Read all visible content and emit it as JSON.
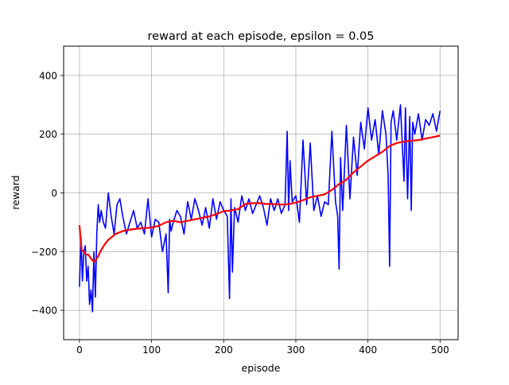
{
  "chart_data": {
    "type": "line",
    "title": "reward at each episode, epsilon = 0.05",
    "xlabel": "episode",
    "ylabel": "reward",
    "xlim": [
      -22,
      525
    ],
    "ylim": [
      -500,
      500
    ],
    "xticks": [
      0,
      100,
      200,
      300,
      400,
      500
    ],
    "yticks": [
      -400,
      -200,
      0,
      200,
      400
    ],
    "xtick_labels": [
      "0",
      "100",
      "200",
      "300",
      "400",
      "500"
    ],
    "ytick_labels": [
      "−400",
      "−200",
      "0",
      "200",
      "400"
    ],
    "grid": true,
    "series": [
      {
        "color": "#0000ff",
        "x": [
          0,
          2,
          4,
          6,
          8,
          10,
          12,
          14,
          16,
          18,
          20,
          22,
          24,
          26,
          28,
          30,
          33,
          36,
          40,
          44,
          48,
          52,
          56,
          60,
          65,
          70,
          75,
          80,
          85,
          90,
          95,
          100,
          105,
          110,
          115,
          120,
          123,
          125,
          127,
          130,
          135,
          140,
          145,
          150,
          155,
          160,
          165,
          170,
          175,
          180,
          185,
          190,
          195,
          200,
          205,
          208,
          210,
          212,
          215,
          220,
          225,
          230,
          235,
          240,
          245,
          250,
          255,
          260,
          265,
          270,
          275,
          280,
          285,
          288,
          290,
          292,
          295,
          300,
          305,
          310,
          315,
          320,
          325,
          330,
          335,
          340,
          345,
          350,
          355,
          358,
          360,
          362,
          365,
          370,
          375,
          380,
          385,
          390,
          395,
          400,
          405,
          410,
          415,
          420,
          425,
          428,
          430,
          432,
          435,
          440,
          445,
          450,
          452,
          455,
          458,
          460,
          462,
          465,
          470,
          475,
          480,
          485,
          490,
          495,
          500
        ],
        "values": [
          -320,
          -150,
          -300,
          -200,
          -180,
          -300,
          -250,
          -380,
          -330,
          -405,
          -200,
          -355,
          -140,
          -40,
          -100,
          -60,
          -100,
          -120,
          0,
          -80,
          -140,
          -40,
          -20,
          -80,
          -140,
          -100,
          -60,
          -120,
          -100,
          -140,
          -20,
          -150,
          -90,
          -100,
          -200,
          -140,
          -340,
          -90,
          -130,
          -100,
          -60,
          -80,
          -140,
          -30,
          -90,
          -20,
          -60,
          -110,
          -50,
          -120,
          -20,
          -90,
          -30,
          -60,
          -80,
          -360,
          -20,
          -270,
          -50,
          -100,
          -10,
          -60,
          -20,
          -70,
          -40,
          -10,
          -50,
          -110,
          -20,
          -60,
          -20,
          -70,
          -40,
          210,
          -60,
          110,
          -30,
          -10,
          -100,
          180,
          -40,
          170,
          -60,
          -10,
          -80,
          -30,
          -40,
          210,
          -30,
          -80,
          -260,
          120,
          -60,
          230,
          -20,
          190,
          60,
          240,
          150,
          290,
          180,
          250,
          130,
          280,
          200,
          60,
          -250,
          240,
          280,
          180,
          300,
          40,
          290,
          -20,
          260,
          -60,
          240,
          200,
          270,
          180,
          250,
          230,
          270,
          210,
          280
        ]
      },
      {
        "color": "#ff0000",
        "x": [
          0,
          3,
          6,
          9,
          12,
          15,
          18,
          20,
          22,
          25,
          30,
          35,
          40,
          45,
          50,
          55,
          60,
          70,
          80,
          90,
          100,
          110,
          120,
          130,
          140,
          150,
          160,
          170,
          180,
          190,
          200,
          210,
          220,
          230,
          240,
          250,
          260,
          270,
          280,
          290,
          300,
          310,
          320,
          330,
          340,
          350,
          360,
          370,
          380,
          390,
          400,
          410,
          420,
          430,
          440,
          450,
          460,
          470,
          480,
          490,
          500
        ],
        "values": [
          -110,
          -195,
          -200,
          -210,
          -210,
          -220,
          -230,
          -235,
          -230,
          -220,
          -195,
          -175,
          -160,
          -150,
          -140,
          -135,
          -130,
          -125,
          -122,
          -120,
          -118,
          -112,
          -100,
          -95,
          -100,
          -95,
          -90,
          -85,
          -80,
          -72,
          -62,
          -60,
          -55,
          -38,
          -35,
          -35,
          -38,
          -38,
          -40,
          -38,
          -33,
          -25,
          -15,
          -10,
          -5,
          10,
          30,
          45,
          70,
          90,
          110,
          125,
          140,
          160,
          170,
          175,
          178,
          180,
          185,
          190,
          195
        ]
      }
    ]
  }
}
